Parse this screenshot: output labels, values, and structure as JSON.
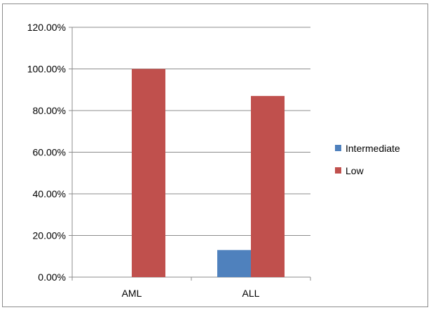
{
  "chart_data": {
    "type": "bar",
    "categories": [
      "AML",
      "ALL"
    ],
    "series": [
      {
        "name": "Intermediate",
        "values": [
          0,
          13
        ],
        "color": "#4f81bd"
      },
      {
        "name": "Low",
        "values": [
          100,
          87
        ],
        "color": "#c0504d"
      }
    ],
    "yticks": [
      "0.00%",
      "20.00%",
      "40.00%",
      "60.00%",
      "80.00%",
      "100.00%",
      "120.00%"
    ],
    "ylim": [
      0,
      120
    ],
    "ytick_step": 20,
    "grid": true,
    "legend": "right",
    "title": "",
    "xlabel": "",
    "ylabel": ""
  }
}
